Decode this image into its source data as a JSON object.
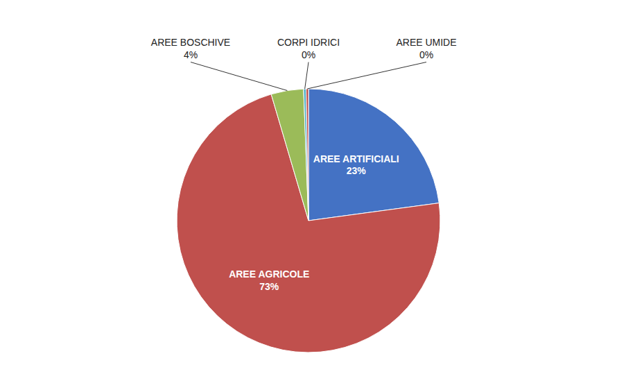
{
  "chart_data": {
    "type": "pie",
    "categories": [
      "AREE ARTIFICIALI",
      "AREE AGRICOLE",
      "AREE BOSCHIVE",
      "CORPI IDRICI",
      "AREE UMIDE"
    ],
    "values": [
      23,
      73,
      4,
      0.3,
      0.3
    ],
    "value_labels": [
      "23%",
      "73%",
      "4%",
      "0%",
      "0%"
    ],
    "colors": [
      "#4472C4",
      "#C0504D",
      "#9BBB59",
      "#4BACC6",
      "#C0504D"
    ],
    "data_labels": true
  }
}
